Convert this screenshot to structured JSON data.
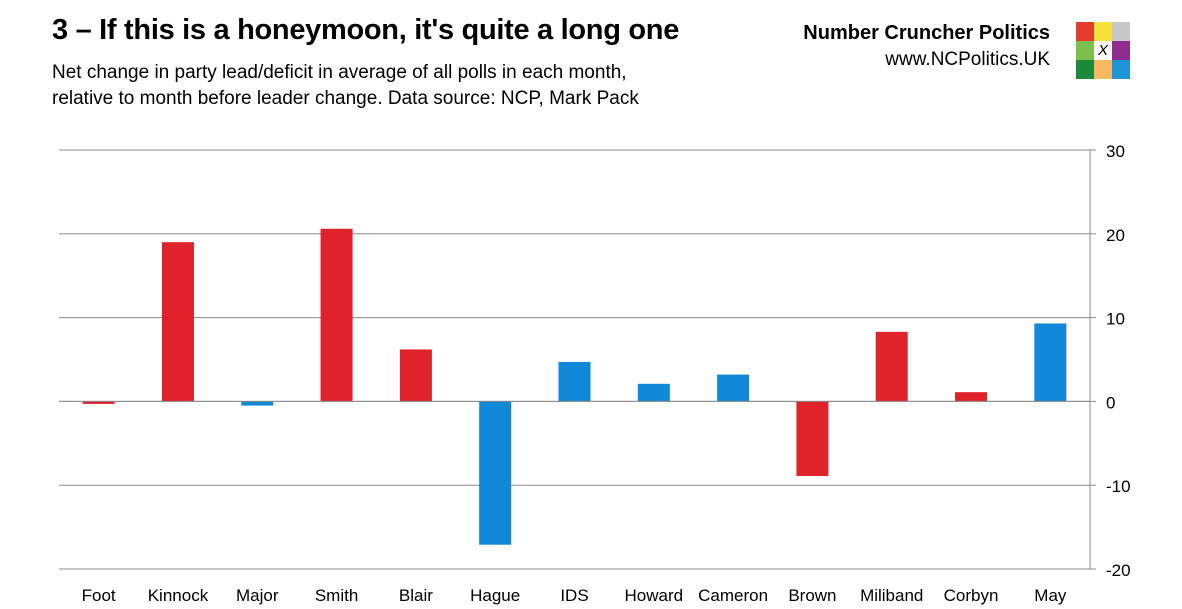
{
  "header": {
    "title": "3 – If this is a honeymoon, it's quite a long one",
    "subtitle_line1": "Net change in party lead/deficit in average of all polls in each month,",
    "subtitle_line2": "relative to month before leader change. Data source: NCP, Mark Pack"
  },
  "brand": {
    "name": "Number Cruncher Politics",
    "url": "www.NCPolitics.UK",
    "logo_mark": "X",
    "logo_colors": [
      "#e63c2f",
      "#f5e43c",
      "#c8c8c8",
      "#7cc04b",
      "#ffffff",
      "#8e2c8e",
      "#1a8a3a",
      "#f9b860",
      "#1e96d6"
    ]
  },
  "colors": {
    "labour": "#e0232b",
    "conservative": "#1087d7"
  },
  "chart_data": {
    "type": "bar",
    "categories": [
      "Foot",
      "Kinnock",
      "Major",
      "Smith",
      "Blair",
      "Hague",
      "IDS",
      "Howard",
      "Cameron",
      "Brown",
      "Miliband",
      "Corbyn",
      "May"
    ],
    "values": [
      -0.3,
      19,
      -0.5,
      20.6,
      6.2,
      -17.1,
      4.7,
      2.1,
      3.2,
      -8.9,
      8.3,
      1.1,
      9.3
    ],
    "party": [
      "labour",
      "labour",
      "conservative",
      "labour",
      "labour",
      "conservative",
      "conservative",
      "conservative",
      "conservative",
      "labour",
      "labour",
      "labour",
      "conservative"
    ],
    "ylim": [
      -20,
      30
    ],
    "yticks": [
      "-20",
      "-10",
      "0",
      "10",
      "20",
      "30"
    ],
    "y_axis_side": "right",
    "grid": true
  }
}
